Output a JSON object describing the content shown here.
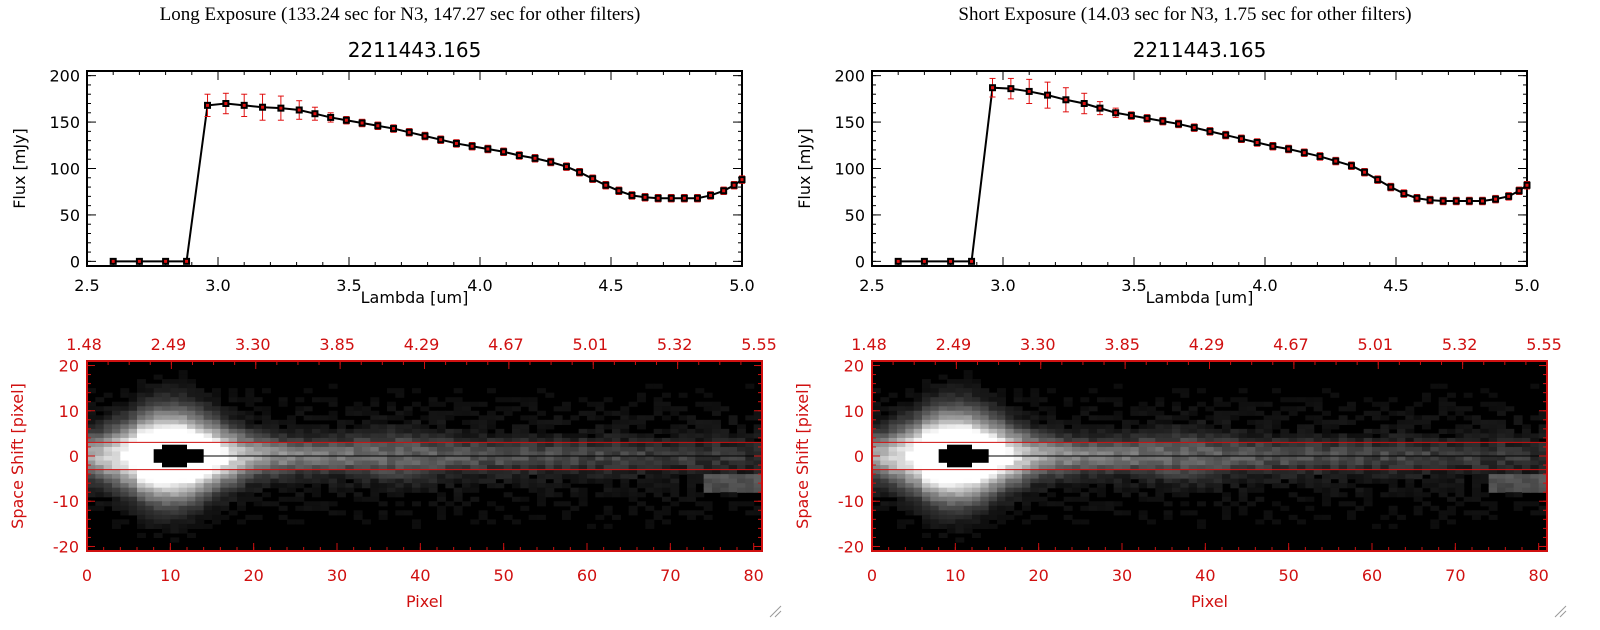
{
  "colors": {
    "background": "#ffffff",
    "plot_line": "#000000",
    "error_bars": "#e01010",
    "bottom_axes": "#d01010",
    "extraction_box": "#d01010"
  },
  "icons": {
    "resize_grip": "resize-grip-icon"
  },
  "panels": [
    {
      "title": "Long Exposure (133.24 sec for N3, 147.27 sec for other filters)"
    },
    {
      "title": "Short Exposure (14.03 sec for N3, 1.75 sec for other filters)"
    }
  ],
  "chart_data": [
    {
      "type": "line",
      "title": "2211443.165",
      "xlabel": "Lambda [um]",
      "ylabel": "Flux [mJy]",
      "xlim": [
        2.5,
        5.0
      ],
      "ylim": [
        -5,
        205
      ],
      "x_ticks": [
        "2.5",
        "3.0",
        "3.5",
        "4.0",
        "4.5",
        "5.0"
      ],
      "y_ticks": [
        "0",
        "50",
        "100",
        "150",
        "200"
      ],
      "grid": false,
      "series": [
        {
          "x": [
            2.6,
            2.7,
            2.8,
            2.88,
            2.96,
            3.03,
            3.1,
            3.17,
            3.24,
            3.31,
            3.37,
            3.43,
            3.49,
            3.55,
            3.61,
            3.67,
            3.73,
            3.79,
            3.85,
            3.91,
            3.97,
            4.03,
            4.09,
            4.15,
            4.21,
            4.27,
            4.33,
            4.38,
            4.43,
            4.48,
            4.53,
            4.58,
            4.63,
            4.68,
            4.73,
            4.78,
            4.83,
            4.88,
            4.93,
            4.97,
            5.0
          ],
          "y": [
            0,
            0,
            0,
            0,
            168,
            170,
            168,
            166,
            165,
            163,
            159,
            155,
            152,
            149,
            146,
            143,
            139,
            135,
            131,
            127,
            124,
            121,
            118,
            114,
            111,
            107,
            102,
            96,
            89,
            82,
            76,
            71,
            69,
            68,
            68,
            68,
            68,
            71,
            76,
            82,
            88
          ],
          "yerr": [
            0,
            0,
            0,
            0,
            12,
            11,
            12,
            14,
            13,
            10,
            7,
            5,
            4,
            4,
            4,
            4,
            4,
            4,
            4,
            4,
            4,
            4,
            4,
            4,
            4,
            4,
            4,
            4,
            4,
            4,
            4,
            4,
            4,
            4,
            4,
            4,
            4,
            4,
            4,
            4,
            4
          ]
        }
      ]
    },
    {
      "type": "heatmap",
      "xlabel": "Pixel",
      "ylabel": "Space Shift [pixel]",
      "xlim": [
        0,
        81
      ],
      "ylim": [
        -21,
        21
      ],
      "x_ticks": [
        "0",
        "10",
        "20",
        "30",
        "40",
        "50",
        "60",
        "70",
        "80"
      ],
      "y_ticks": [
        "-20",
        "-10",
        "0",
        "10",
        "20"
      ],
      "top_axis_ticks": [
        "1.48",
        "2.49",
        "3.30",
        "3.85",
        "4.29",
        "4.67",
        "5.01",
        "5.32",
        "5.55"
      ],
      "extraction_window": [
        -3,
        3
      ],
      "colormap": "gray"
    },
    {
      "type": "line",
      "title": "2211443.165",
      "xlabel": "Lambda [um]",
      "ylabel": "Flux [mJy]",
      "xlim": [
        2.5,
        5.0
      ],
      "ylim": [
        -5,
        205
      ],
      "x_ticks": [
        "2.5",
        "3.0",
        "3.5",
        "4.0",
        "4.5",
        "5.0"
      ],
      "y_ticks": [
        "0",
        "50",
        "100",
        "150",
        "200"
      ],
      "grid": false,
      "series": [
        {
          "x": [
            2.6,
            2.7,
            2.8,
            2.88,
            2.96,
            3.03,
            3.1,
            3.17,
            3.24,
            3.31,
            3.37,
            3.43,
            3.49,
            3.55,
            3.61,
            3.67,
            3.73,
            3.79,
            3.85,
            3.91,
            3.97,
            4.03,
            4.09,
            4.15,
            4.21,
            4.27,
            4.33,
            4.38,
            4.43,
            4.48,
            4.53,
            4.58,
            4.63,
            4.68,
            4.73,
            4.78,
            4.83,
            4.88,
            4.93,
            4.97,
            5.0
          ],
          "y": [
            0,
            0,
            0,
            0,
            187,
            186,
            183,
            179,
            174,
            170,
            165,
            160,
            157,
            154,
            151,
            148,
            144,
            140,
            136,
            132,
            128,
            124,
            121,
            117,
            113,
            108,
            103,
            96,
            88,
            80,
            73,
            68,
            66,
            65,
            65,
            65,
            65,
            67,
            70,
            76,
            82
          ],
          "yerr": [
            0,
            0,
            0,
            0,
            10,
            11,
            13,
            14,
            13,
            11,
            7,
            5,
            4,
            4,
            4,
            4,
            4,
            4,
            4,
            4,
            4,
            4,
            4,
            4,
            4,
            4,
            4,
            4,
            4,
            4,
            4,
            4,
            4,
            4,
            4,
            4,
            4,
            4,
            4,
            4,
            4
          ]
        }
      ]
    },
    {
      "type": "heatmap",
      "xlabel": "Pixel",
      "ylabel": "Space Shift [pixel]",
      "xlim": [
        0,
        81
      ],
      "ylim": [
        -21,
        21
      ],
      "x_ticks": [
        "0",
        "10",
        "20",
        "30",
        "40",
        "50",
        "60",
        "70",
        "80"
      ],
      "y_ticks": [
        "-20",
        "-10",
        "0",
        "10",
        "20"
      ],
      "top_axis_ticks": [
        "1.48",
        "2.49",
        "3.30",
        "3.85",
        "4.29",
        "4.67",
        "5.01",
        "5.32",
        "5.55"
      ],
      "extraction_window": [
        -3,
        3
      ],
      "colormap": "gray"
    }
  ]
}
